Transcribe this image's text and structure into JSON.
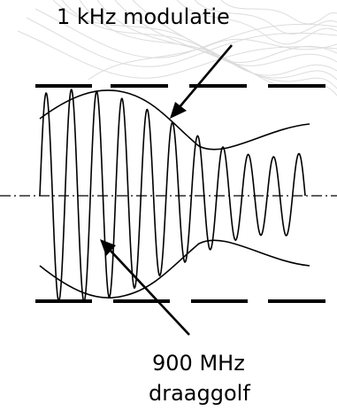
{
  "labels": {
    "modulation": "1 kHz modulatie",
    "carrier_line1": "900 MHz",
    "carrier_line2": "draaggolf"
  },
  "colors": {
    "ink": "#000000",
    "background": "#ffffff",
    "watermark": "#d8d8d8"
  }
}
